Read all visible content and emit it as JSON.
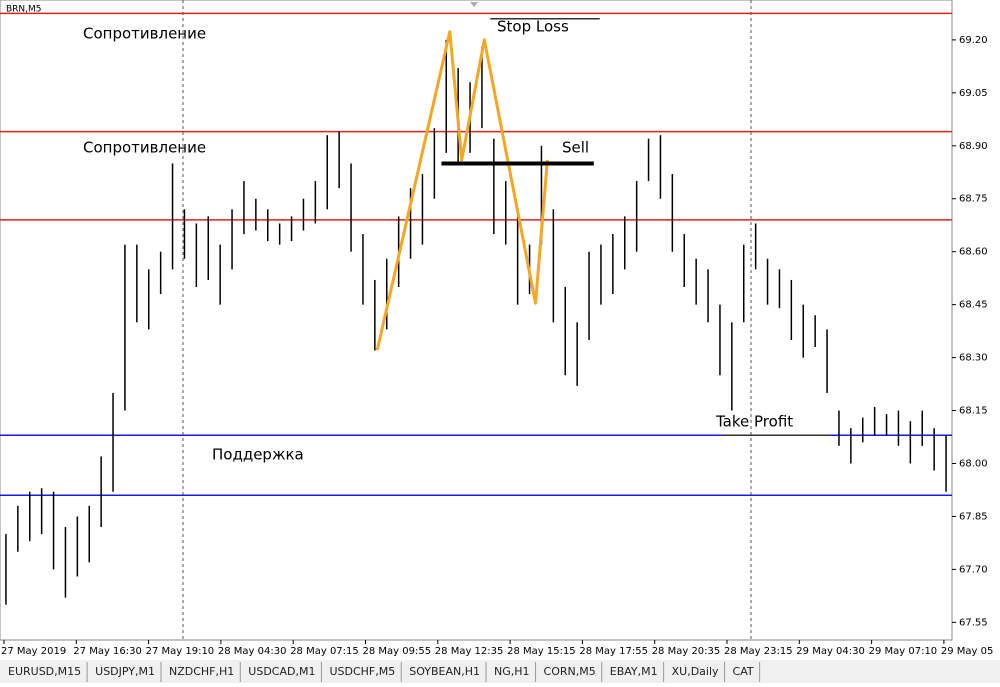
{
  "chart_data": {
    "type": "ohlc",
    "symbol": "BRN,M5",
    "xlim": [
      0,
      80
    ],
    "ylim": [
      67.5,
      69.313
    ],
    "yticks": [
      {
        "value": 69.2,
        "label": "69.20"
      },
      {
        "value": 69.05,
        "label": "69.05"
      },
      {
        "value": 68.9,
        "label": "68.90"
      },
      {
        "value": 68.75,
        "label": "68.75"
      },
      {
        "value": 68.6,
        "label": "68.60"
      },
      {
        "value": 68.45,
        "label": "68.45"
      },
      {
        "value": 68.3,
        "label": "68.30"
      },
      {
        "value": 68.15,
        "label": "68.15"
      },
      {
        "value": 68.0,
        "label": "68.00"
      },
      {
        "value": 67.85,
        "label": "67.85"
      },
      {
        "value": 67.7,
        "label": "67.70"
      },
      {
        "value": 67.55,
        "label": "67.55"
      }
    ],
    "xlabels": [
      "27 May 2019",
      "27 May 16:30",
      "27 May 19:10",
      "28 May 04:30",
      "28 May 07:15",
      "28 May 09:55",
      "28 May 12:35",
      "28 May 15:15",
      "28 May 17:55",
      "28 May 20:35",
      "28 May 23:15",
      "29 May 04:30",
      "29 May 07:10",
      "29 May 05"
    ],
    "series": [
      {
        "name": "BRN",
        "color": "#000000",
        "high": [
          67.8,
          67.88,
          67.92,
          67.93,
          67.92,
          67.82,
          67.85,
          67.88,
          68.02,
          68.2,
          68.62,
          68.62,
          68.55,
          68.6,
          68.85,
          68.72,
          68.68,
          68.7,
          68.62,
          68.72,
          68.8,
          68.75,
          68.72,
          68.68,
          68.7,
          68.75,
          68.8,
          68.93,
          68.94,
          68.85,
          68.65,
          68.52,
          68.58,
          68.7,
          68.78,
          68.82,
          68.95,
          69.2,
          69.12,
          69.08,
          69.18,
          68.92,
          68.8,
          68.7,
          68.62,
          68.9,
          68.72,
          68.5,
          68.4,
          68.6,
          68.62,
          68.65,
          68.7,
          68.8,
          68.92,
          68.93,
          68.82,
          68.65,
          68.58,
          68.55,
          68.45,
          68.4,
          68.62,
          68.68,
          68.58,
          68.55,
          68.52,
          68.45,
          68.42,
          68.38,
          68.15,
          68.1,
          68.13,
          68.16,
          68.14,
          68.15,
          68.12,
          68.15,
          68.1,
          68.08
        ],
        "low": [
          67.6,
          67.75,
          67.78,
          67.8,
          67.7,
          67.62,
          67.68,
          67.72,
          67.82,
          67.92,
          68.15,
          68.4,
          68.38,
          68.48,
          68.55,
          68.58,
          68.5,
          68.52,
          68.45,
          68.55,
          68.65,
          68.66,
          68.63,
          68.62,
          68.63,
          68.66,
          68.68,
          68.72,
          68.78,
          68.6,
          68.45,
          68.32,
          68.38,
          68.5,
          68.58,
          68.62,
          68.75,
          68.88,
          68.85,
          68.88,
          68.95,
          68.65,
          68.62,
          68.45,
          68.48,
          68.62,
          68.4,
          68.25,
          68.22,
          68.35,
          68.45,
          68.48,
          68.55,
          68.6,
          68.8,
          68.75,
          68.6,
          68.5,
          68.45,
          68.4,
          68.25,
          68.15,
          68.4,
          68.55,
          68.45,
          68.44,
          68.35,
          68.3,
          68.33,
          68.2,
          68.05,
          68.0,
          68.06,
          68.08,
          68.08,
          68.05,
          68.0,
          68.05,
          67.98,
          67.92
        ]
      }
    ],
    "levels": [
      {
        "value": 69.275,
        "color": "#e02020"
      },
      {
        "value": 68.94,
        "color": "#e02020"
      },
      {
        "value": 68.69,
        "color": "#e02020"
      },
      {
        "value": 68.08,
        "color": "#1a1adc"
      },
      {
        "value": 67.91,
        "color": "#1a1adc"
      }
    ],
    "pattern": {
      "color": "#f5a623",
      "x": [
        31.7,
        37.8,
        38.8,
        40.7,
        45.0,
        46.0
      ],
      "y": [
        68.321,
        69.223,
        68.86,
        69.2,
        68.454,
        68.86
      ]
    },
    "segments": [
      {
        "x": [
          41.2,
          50.4
        ],
        "value": 69.26,
        "color": "#333333",
        "width": 1.5
      },
      {
        "x": [
          37.1,
          49.9
        ],
        "value": 68.85,
        "color": "#000000",
        "width": 4
      },
      {
        "x": [
          60.7,
          69.7
        ],
        "value": 68.08,
        "color": "#333333",
        "width": 1.5
      }
    ],
    "annotations": [
      "Сопротивление",
      "Сопротивление",
      "Поддержка",
      "Stop Loss",
      "Sell",
      "Take Profit"
    ]
  },
  "tabs": [
    "EURUSD,M15",
    "USDJPY,M1",
    "NZDCHF,H1",
    "USDCAD,M1",
    "USDCHF,M5",
    "SOYBEAN,H1",
    "NG,H1",
    "CORN,M5",
    "EBAY,M1",
    "XU,Daily",
    "CAT"
  ]
}
